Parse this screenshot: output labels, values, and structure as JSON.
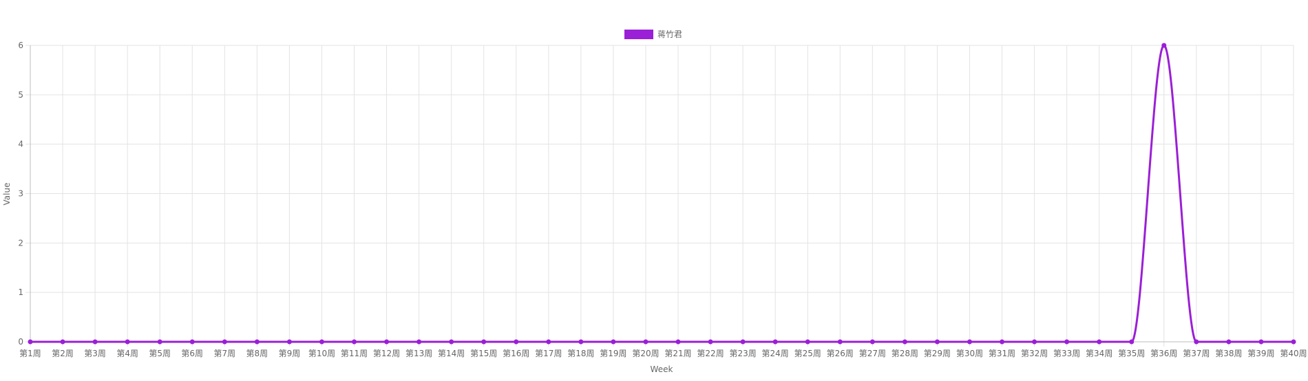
{
  "chart_data": {
    "type": "line",
    "categories": [
      "第1周",
      "第2周",
      "第3周",
      "第4周",
      "第5周",
      "第6周",
      "第7周",
      "第8周",
      "第9周",
      "第10周",
      "第11周",
      "第12周",
      "第13周",
      "第14周",
      "第15周",
      "第16周",
      "第17周",
      "第18周",
      "第19周",
      "第20周",
      "第21周",
      "第22周",
      "第23周",
      "第24周",
      "第25周",
      "第26周",
      "第27周",
      "第28周",
      "第29周",
      "第30周",
      "第31周",
      "第32周",
      "第33周",
      "第34周",
      "第35周",
      "第36周",
      "第37周",
      "第38周",
      "第39周",
      "第40周"
    ],
    "series": [
      {
        "name": "蒋竹君",
        "color": "#9b1fd6",
        "values": [
          0,
          0,
          0,
          0,
          0,
          0,
          0,
          0,
          0,
          0,
          0,
          0,
          0,
          0,
          0,
          0,
          0,
          0,
          0,
          0,
          0,
          0,
          0,
          0,
          0,
          0,
          0,
          0,
          0,
          0,
          0,
          0,
          0,
          0,
          0,
          6,
          0,
          0,
          0,
          0
        ]
      }
    ],
    "xlabel": "Week",
    "ylabel": "Value",
    "ylim": [
      0,
      6
    ],
    "yticks": [
      "0",
      "1",
      "2",
      "3",
      "4",
      "5",
      "6"
    ],
    "grid": true,
    "legend_position": "top-center"
  }
}
